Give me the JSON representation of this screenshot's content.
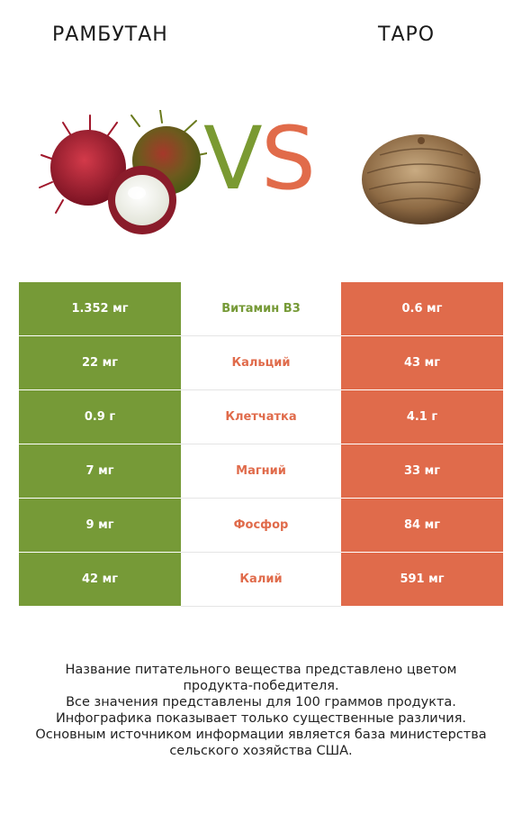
{
  "header": {
    "left_title": "РАМБУТАН",
    "right_title": "ТАРО",
    "vs_v": "V",
    "vs_s": "S"
  },
  "images": {
    "left": "rambutan-fruit-image",
    "right": "taro-root-image"
  },
  "colors": {
    "left_accent": "#769a37",
    "right_accent": "#e06b4b"
  },
  "rows": [
    {
      "left": "1.352 мг",
      "nutrient": "Витамин B3",
      "right": "0.6 мг",
      "winner": "left"
    },
    {
      "left": "22 мг",
      "nutrient": "Кальций",
      "right": "43 мг",
      "winner": "right"
    },
    {
      "left": "0.9 г",
      "nutrient": "Клетчатка",
      "right": "4.1 г",
      "winner": "right"
    },
    {
      "left": "7 мг",
      "nutrient": "Магний",
      "right": "33 мг",
      "winner": "right"
    },
    {
      "left": "9 мг",
      "nutrient": "Фосфор",
      "right": "84 мг",
      "winner": "right"
    },
    {
      "left": "42 мг",
      "nutrient": "Калий",
      "right": "591 мг",
      "winner": "right"
    }
  ],
  "footnote": {
    "line1": "Название питательного вещества представлено цветом",
    "line2": "продукта-победителя.",
    "line3": "Все значения представлены для 100 граммов продукта.",
    "line4": "Инфографика показывает только существенные различия.",
    "line5": "Основным источником информации является база министерства",
    "line6": "сельского хозяйства США."
  }
}
